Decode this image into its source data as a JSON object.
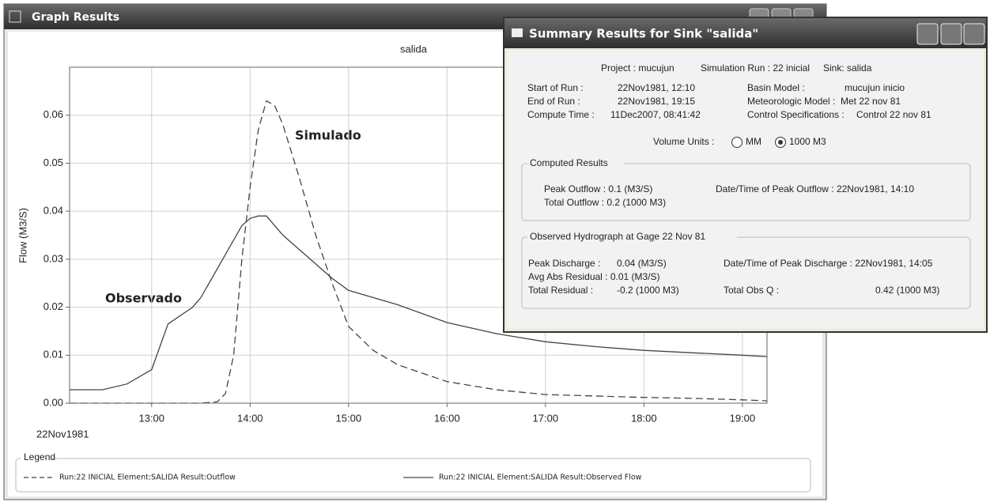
{
  "graph_window": {
    "title": "Graph Results"
  },
  "chart_data": {
    "type": "line",
    "title": "salida",
    "y_label": "Flow (M3/S)",
    "date_label": "22Nov1981",
    "x": [
      12.1667,
      12.5,
      12.75,
      13,
      13.1667,
      13.4167,
      13.5,
      13.6667,
      13.75,
      13.8333,
      13.9167,
      14,
      14.0833,
      14.1667,
      14.25,
      14.3333,
      14.5,
      14.6667,
      14.8333,
      15,
      15.25,
      15.5,
      16,
      16.5,
      17,
      17.5,
      18,
      18.5,
      19,
      19.25
    ],
    "xlim": [
      12.1667,
      19.25
    ],
    "xticks": [
      {
        "value": 13,
        "label": "13:00"
      },
      {
        "value": 14,
        "label": "14:00"
      },
      {
        "value": 15,
        "label": "15:00"
      },
      {
        "value": 16,
        "label": "16:00"
      },
      {
        "value": 17,
        "label": "17:00"
      },
      {
        "value": 18,
        "label": "18:00"
      },
      {
        "value": 19,
        "label": "19:00"
      }
    ],
    "ylim": [
      0,
      0.07
    ],
    "yticks": [
      {
        "value": 0,
        "label": "0.00"
      },
      0.01,
      0.02,
      0.03,
      0.04,
      0.05,
      0.06
    ],
    "grid": true,
    "series": [
      {
        "name": "Run:22 INICIAL Element:SALIDA Result:Outflow",
        "color": "#444444",
        "dash": "dashed",
        "values": [
          0,
          0,
          0,
          0,
          0,
          0,
          0,
          0.0003,
          0.002,
          0.01,
          0.03,
          0.045,
          0.057,
          0.063,
          0.062,
          0.058,
          0.047,
          0.035,
          0.025,
          0.016,
          0.011,
          0.008,
          0.0045,
          0.0028,
          0.0018,
          0.0015,
          0.0012,
          0.001,
          0.0007,
          0.0005
        ]
      },
      {
        "name": "Run:22 INICIAL Element:SALIDA Result:Observed Flow",
        "color": "#444444",
        "dash": "solid",
        "values": [
          0.0028,
          0.0028,
          0.004,
          0.007,
          0.0165,
          0.02,
          0.022,
          0.028,
          0.031,
          0.034,
          0.037,
          0.0385,
          0.039,
          0.039,
          0.037,
          0.035,
          0.032,
          0.029,
          0.026,
          0.0235,
          0.022,
          0.0205,
          0.0168,
          0.0145,
          0.0128,
          0.0118,
          0.011,
          0.0105,
          0.01,
          0.0097
        ]
      }
    ],
    "annotations": [
      "Simulado",
      "Observado"
    ],
    "legend_title": "Legend"
  },
  "summary": {
    "title": "Summary Results for Sink \"salida\"",
    "header": [
      "Project : mucujun",
      "Simulation Run : 22 inicial",
      "Sink: salida"
    ],
    "left_labels": [
      "Start of Run :",
      "End of Run :",
      "Compute Time :"
    ],
    "left_values": [
      "22Nov1981, 12:10",
      "22Nov1981, 19:15",
      "11Dec2007, 08:41:42"
    ],
    "right_labels": [
      "Basin Model :",
      "Meteorologic Model :",
      "Control Specifications :"
    ],
    "right_values": [
      "mucujun inicio",
      "Met 22 nov 81",
      "Control 22 nov 81"
    ],
    "volume_label": "Volume Units :",
    "volume_options": [
      "MM",
      "1000 M3"
    ],
    "computed": {
      "title": "Computed Results",
      "peak_outflow": "Peak Outflow : 0.1 (M3/S)",
      "total_outflow": "Total Outflow : 0.2 (1000 M3)",
      "peak_time": "Date/Time of Peak Outflow : 22Nov1981, 14:10"
    },
    "observed": {
      "title": "Observed Hydrograph at Gage 22 Nov 81",
      "peak_label": "Peak Discharge :",
      "peak_value": "0.04 (M3/S)",
      "avg_residual": "Avg Abs Residual : 0.01 (M3/S)",
      "residual_label": "Total Residual :",
      "residual_value": "-0.2 (1000 M3)",
      "peak_time": "Date/Time of Peak Discharge : 22Nov1981, 14:05",
      "obs_label": "Total Obs Q :",
      "obs_value": "0.42 (1000 M3)"
    }
  }
}
